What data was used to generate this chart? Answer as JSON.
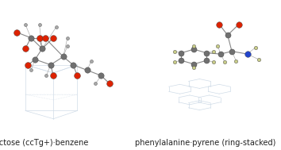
{
  "figsize": [
    3.54,
    1.89
  ],
  "dpi": 100,
  "background_color": "#ffffff",
  "left_caption": "galactose (ccTg+)·benzene",
  "right_caption": "phenylalanine·pyrene (ring-stacked)",
  "caption_fontsize": 7.0,
  "caption_color": "#222222",
  "left_panel": {
    "wireframe_color": "#d0dce8",
    "wireframe_lw": 0.5,
    "bond_color": "#888888",
    "bond_lw": 0.8,
    "carbon_color": "#707070",
    "carbon_size": 28,
    "oxygen_color": "#dd2200",
    "oxygen_size": 32,
    "hydrogen_color": "#aaaaaa",
    "hydrogen_size": 8
  },
  "right_panel": {
    "wireframe_color": "#d0dce8",
    "wireframe_lw": 0.5,
    "bond_color": "#888888",
    "bond_lw": 0.8,
    "carbon_color": "#707070",
    "carbon_size": 26,
    "oxygen_color": "#dd2200",
    "oxygen_size": 30,
    "nitrogen_color": "#2244cc",
    "nitrogen_size": 30,
    "hydrogen_color": "#c8cc88",
    "hydrogen_size": 10
  }
}
